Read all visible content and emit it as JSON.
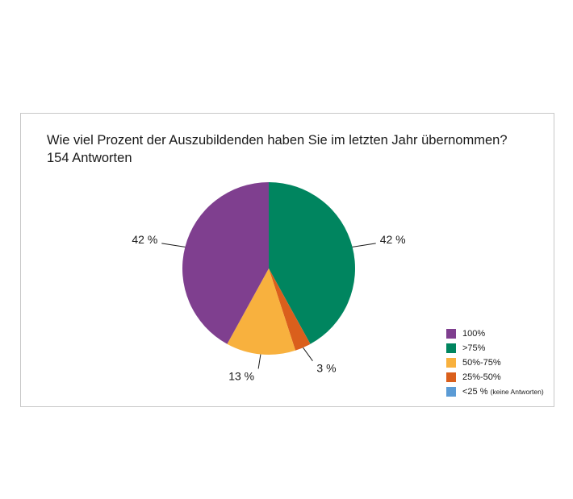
{
  "chart_data": {
    "type": "pie",
    "title": "Wie viel Prozent der Auszubildenden haben Sie im letzten Jahr übernommen?",
    "subtitle": "154 Antworten",
    "slices": [
      {
        "label": "100%",
        "value": 42,
        "value_label": "42 %",
        "color": "#7F3F8F"
      },
      {
        "label": ">75%",
        "value": 42,
        "value_label": "42 %",
        "color": "#00855F"
      },
      {
        "label": "50%-75%",
        "value": 13,
        "value_label": "13 %",
        "color": "#F8B13E"
      },
      {
        "label": "25%-50%",
        "value": 3,
        "value_label": "3 %",
        "color": "#DA5F1C"
      },
      {
        "label": "<25 %",
        "note": "(keine Antworten)",
        "value": 0,
        "value_label": "",
        "color": "#5B9BD5"
      }
    ],
    "legend_position": "bottom-right"
  }
}
